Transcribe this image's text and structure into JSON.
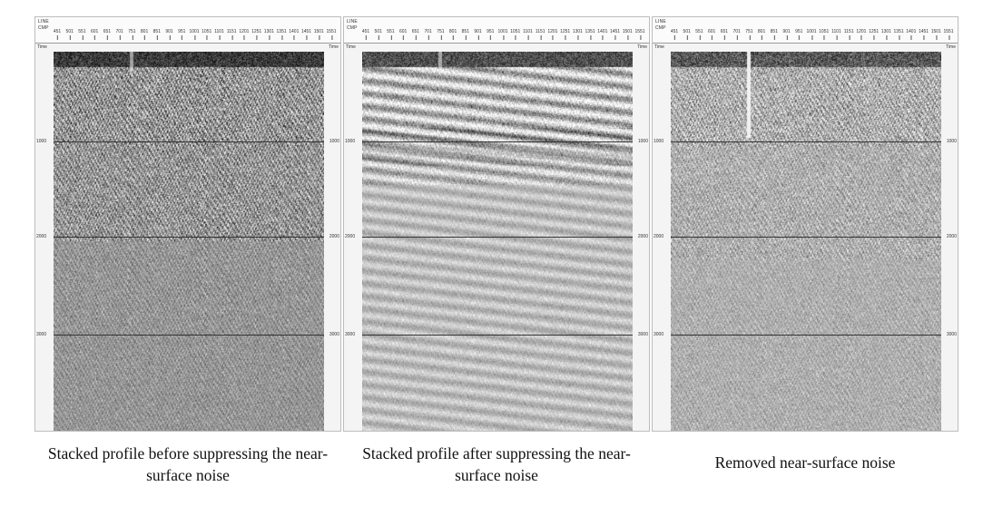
{
  "header": {
    "line_label": "LINE",
    "cmp_label": "CMP",
    "cmp_ticks": [
      "451",
      "501",
      "551",
      "601",
      "651",
      "701",
      "751",
      "801",
      "851",
      "901",
      "951",
      "1001",
      "1051",
      "1101",
      "1151",
      "1201",
      "1251",
      "1301",
      "1351",
      "1401",
      "1451",
      "1501",
      "1551"
    ]
  },
  "axis": {
    "time_label": "Time",
    "time_ticks": [
      "1000",
      "2000",
      "3000"
    ]
  },
  "panels": [
    {
      "caption": "Stacked profile before suppressing the near-surface noise"
    },
    {
      "caption": "Stacked profile after suppressing the near-surface noise"
    },
    {
      "caption": "Removed near-surface noise"
    }
  ]
}
